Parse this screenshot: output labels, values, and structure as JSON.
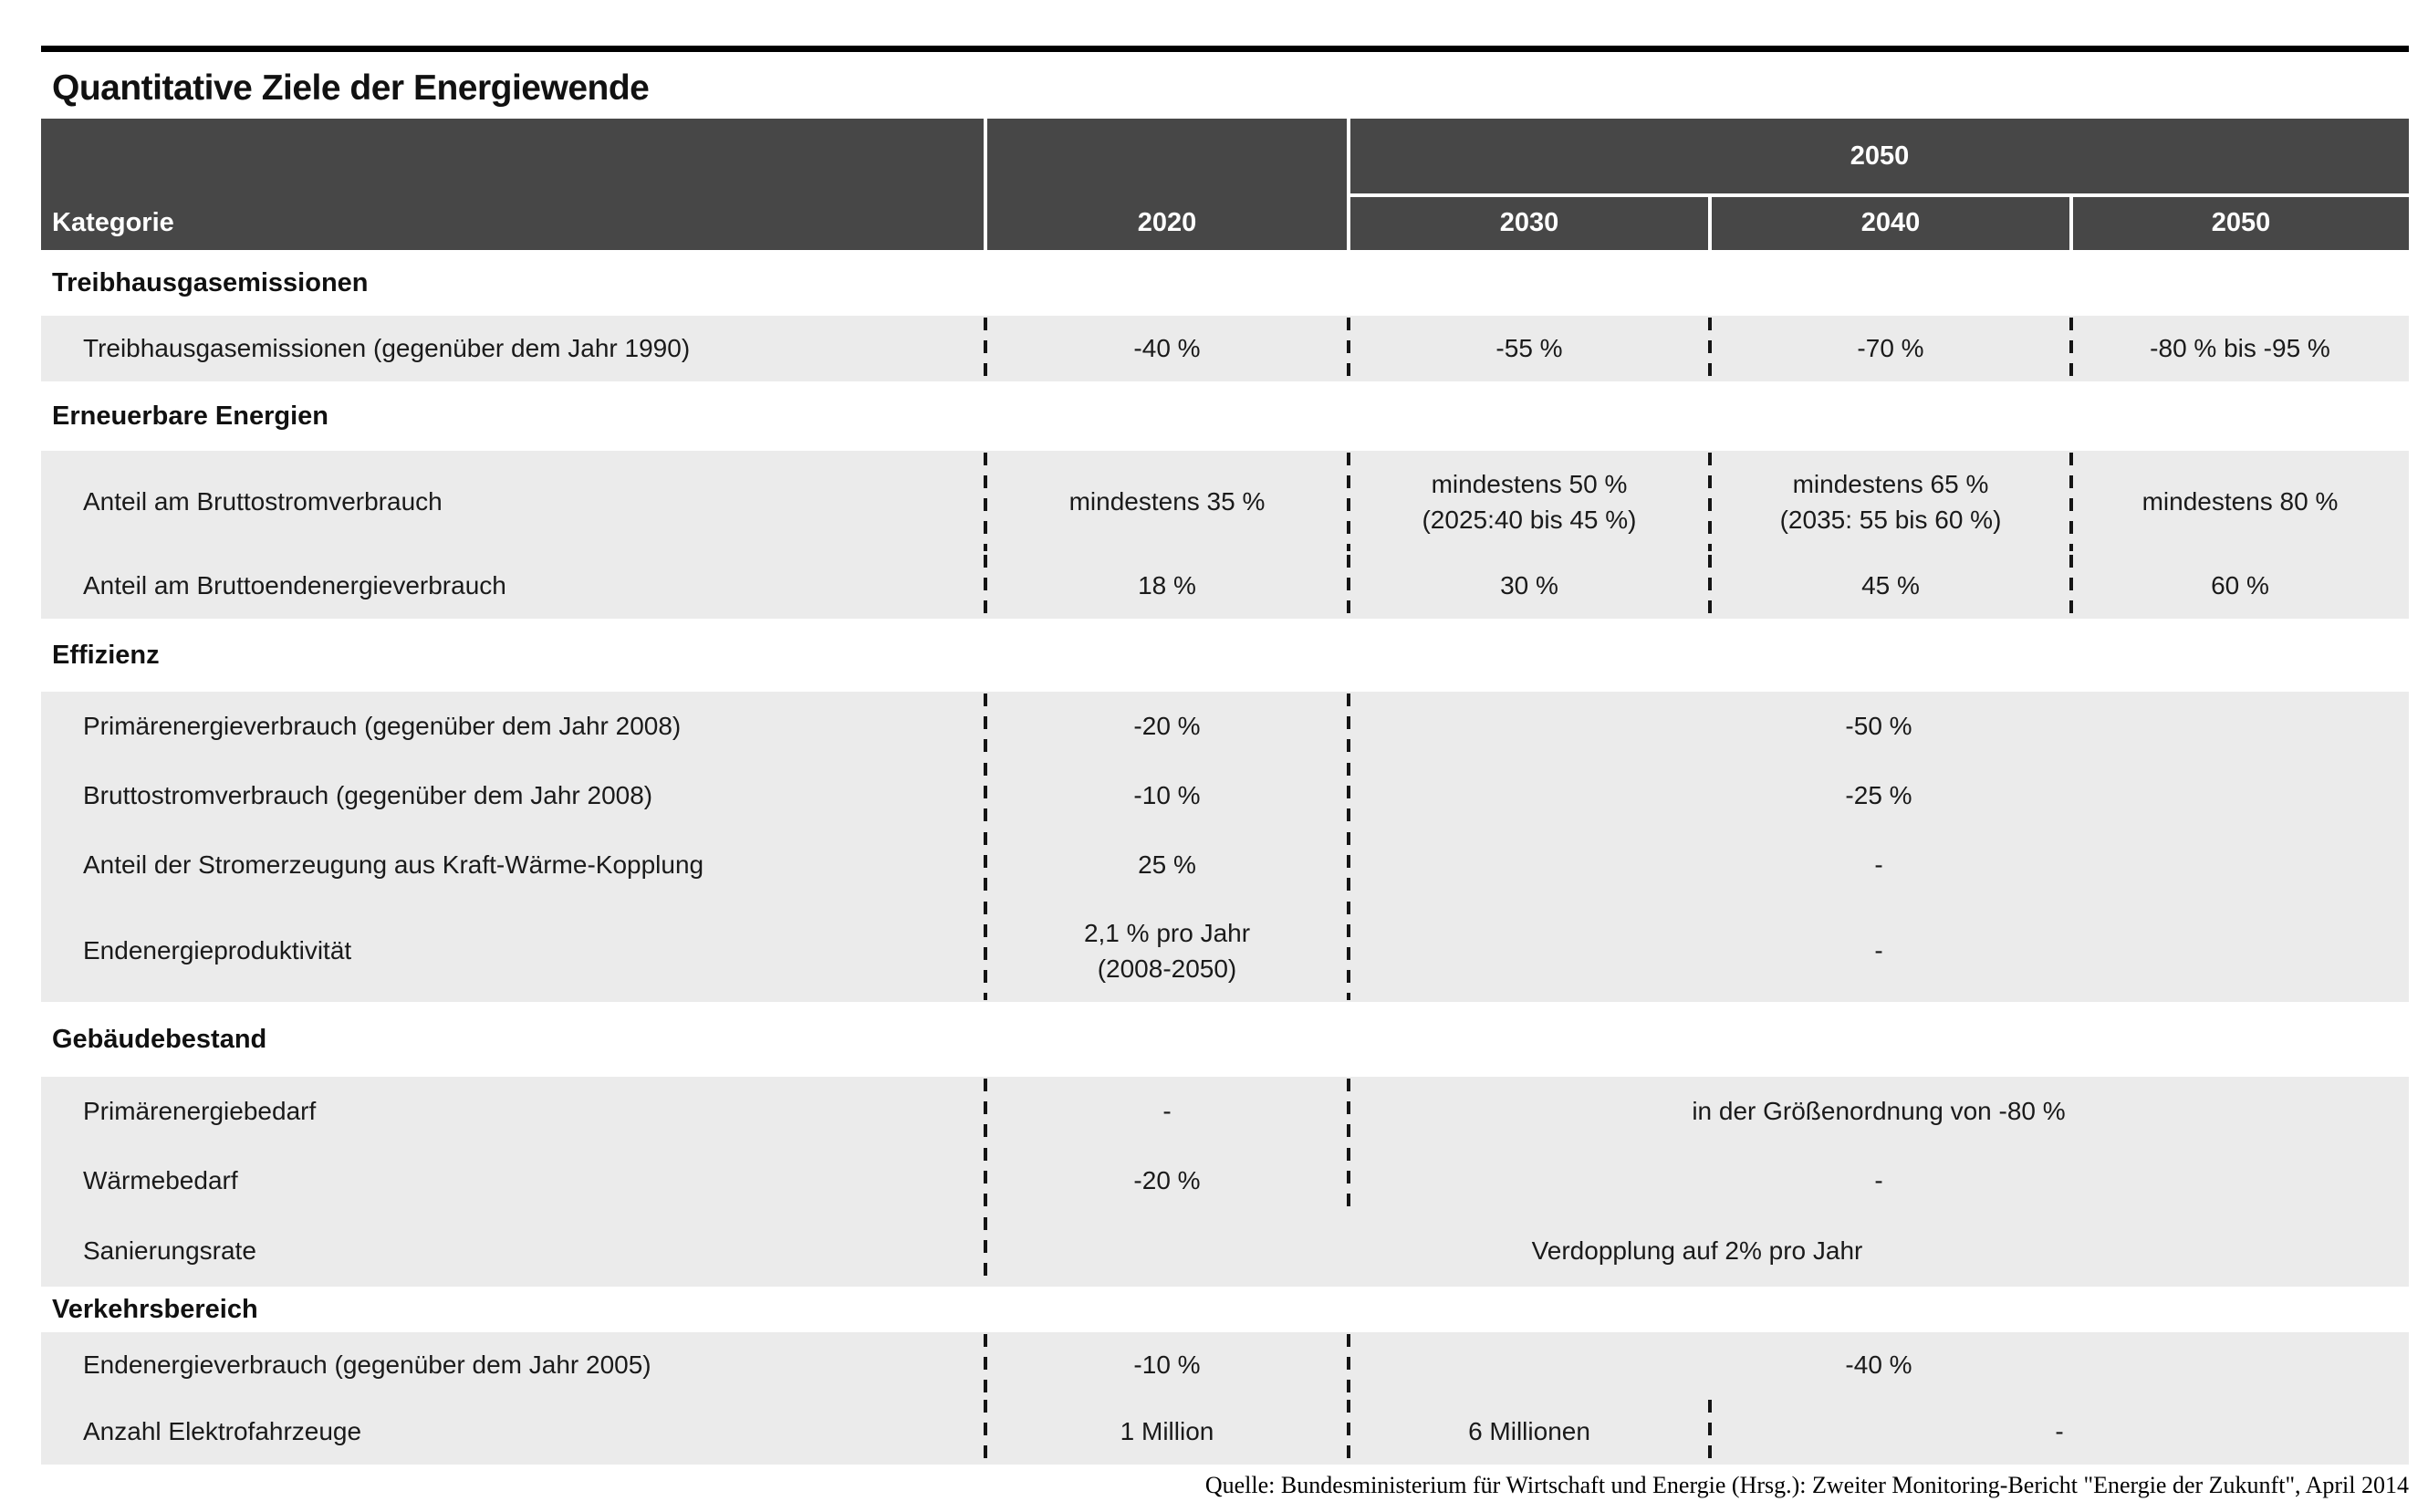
{
  "title": "Quantitative Ziele der Energiewende",
  "header": {
    "kategorie": "Kategorie",
    "col_2020": "2020",
    "group_2050": "2050",
    "sub_2030": "2030",
    "sub_2040": "2040",
    "sub_2050": "2050"
  },
  "sections": [
    {
      "label": "Treibhausgasemissionen",
      "rows": [
        {
          "label": "Treibhausgasemissionen (gegenüber dem Jahr 1990)",
          "values": [
            {
              "text": "-40 %",
              "span": 1
            },
            {
              "text": "-55 %",
              "span": 1
            },
            {
              "text": "-70 %",
              "span": 1
            },
            {
              "text": "-80 % bis -95 %",
              "span": 1
            }
          ]
        }
      ]
    },
    {
      "label": "Erneuerbare Energien",
      "rows": [
        {
          "label": "Anteil am Bruttostromverbrauch",
          "values": [
            {
              "text": "mindestens 35 %",
              "span": 1
            },
            {
              "text": "mindestens 50 %\n(2025:40 bis 45 %)",
              "span": 1
            },
            {
              "text": "mindestens 65 %\n(2035: 55 bis 60 %)",
              "span": 1
            },
            {
              "text": "mindestens 80 %",
              "span": 1
            }
          ]
        },
        {
          "label": "Anteil am Bruttoendenergieverbrauch",
          "values": [
            {
              "text": "18 %",
              "span": 1
            },
            {
              "text": "30 %",
              "span": 1
            },
            {
              "text": "45 %",
              "span": 1
            },
            {
              "text": "60 %",
              "span": 1
            }
          ]
        }
      ]
    },
    {
      "label": "Effizienz",
      "rows": [
        {
          "label": "Primärenergieverbrauch (gegenüber dem Jahr 2008)",
          "values": [
            {
              "text": "-20 %",
              "span": 1
            },
            {
              "text": "-50 %",
              "span": 3
            }
          ]
        },
        {
          "label": "Bruttostromverbrauch (gegenüber dem Jahr 2008)",
          "values": [
            {
              "text": "-10 %",
              "span": 1
            },
            {
              "text": "-25 %",
              "span": 3
            }
          ]
        },
        {
          "label": "Anteil der Stromerzeugung aus Kraft-Wärme-Kopplung",
          "values": [
            {
              "text": "25 %",
              "span": 1
            },
            {
              "text": "-",
              "span": 3
            }
          ]
        },
        {
          "label": "Endenergieproduktivität",
          "values": [
            {
              "text": "2,1 % pro Jahr\n(2008-2050)",
              "span": 1
            },
            {
              "text": "-",
              "span": 3
            }
          ]
        }
      ]
    },
    {
      "label": "Gebäudebestand",
      "rows": [
        {
          "label": "Primärenergiebedarf",
          "values": [
            {
              "text": "-",
              "span": 1
            },
            {
              "text": "in der Größenordnung von -80 %",
              "span": 3
            }
          ]
        },
        {
          "label": "Wärmebedarf",
          "values": [
            {
              "text": "-20 %",
              "span": 1
            },
            {
              "text": "-",
              "span": 3
            }
          ]
        },
        {
          "label": "Sanierungsrate",
          "values": [
            {
              "text": "Verdopplung auf 2% pro Jahr",
              "span": 4
            }
          ]
        }
      ]
    },
    {
      "label": "Verkehrsbereich",
      "rows": [
        {
          "label": "Endenergieverbrauch (gegenüber dem Jahr 2005)",
          "values": [
            {
              "text": "-10 %",
              "span": 1
            },
            {
              "text": "-40 %",
              "span": 3
            }
          ]
        },
        {
          "label": "Anzahl Elektrofahrzeuge",
          "values": [
            {
              "text": "1 Million",
              "span": 1
            },
            {
              "text": "6 Millionen",
              "span": 1
            },
            {
              "text": "-",
              "span": 2
            }
          ]
        }
      ]
    }
  ],
  "source": "Quelle: Bundesministerium für Wirtschaft und Energie (Hrsg.): Zweiter Monitoring-Bericht \"Energie der Zukunft\", April 2014",
  "colors": {
    "header_bg": "#474747",
    "header_text": "#ffffff",
    "row_bg": "#ebebeb",
    "rule": "#000000",
    "text": "#1a1a1a"
  },
  "chart_data": {
    "type": "table",
    "title": "Quantitative Ziele der Energiewende",
    "columns": [
      "Kategorie",
      "2020",
      "2030",
      "2040",
      "2050"
    ],
    "column_grouping": {
      "group_label": "2050",
      "grouped_columns": [
        "2030",
        "2040",
        "2050"
      ]
    },
    "rows": [
      {
        "section": "Treibhausgasemissionen",
        "kategorie": "Treibhausgasemissionen (gegenüber dem Jahr 1990)",
        "2020": "-40 %",
        "2030": "-55 %",
        "2040": "-70 %",
        "2050": "-80 % bis -95 %"
      },
      {
        "section": "Erneuerbare Energien",
        "kategorie": "Anteil am Bruttostromverbrauch",
        "2020": "mindestens 35 %",
        "2030": "mindestens 50 % (2025:40 bis 45 %)",
        "2040": "mindestens 65 % (2035: 55 bis 60 %)",
        "2050": "mindestens 80 %"
      },
      {
        "section": "Erneuerbare Energien",
        "kategorie": "Anteil am Bruttoendenergieverbrauch",
        "2020": "18 %",
        "2030": "30 %",
        "2040": "45 %",
        "2050": "60 %"
      },
      {
        "section": "Effizienz",
        "kategorie": "Primärenergieverbrauch (gegenüber dem Jahr 2008)",
        "2020": "-20 %",
        "2030_2050": "-50 %"
      },
      {
        "section": "Effizienz",
        "kategorie": "Bruttostromverbrauch (gegenüber dem Jahr 2008)",
        "2020": "-10 %",
        "2030_2050": "-25 %"
      },
      {
        "section": "Effizienz",
        "kategorie": "Anteil der Stromerzeugung aus Kraft-Wärme-Kopplung",
        "2020": "25 %",
        "2030_2050": "-"
      },
      {
        "section": "Effizienz",
        "kategorie": "Endenergieproduktivität",
        "2020": "2,1 % pro Jahr (2008-2050)",
        "2030_2050": "-"
      },
      {
        "section": "Gebäudebestand",
        "kategorie": "Primärenergiebedarf",
        "2020": "-",
        "2030_2050": "in der Größenordnung von -80 %"
      },
      {
        "section": "Gebäudebestand",
        "kategorie": "Wärmebedarf",
        "2020": "-20 %",
        "2030_2050": "-"
      },
      {
        "section": "Gebäudebestand",
        "kategorie": "Sanierungsrate",
        "2020_2050": "Verdopplung auf 2% pro Jahr"
      },
      {
        "section": "Verkehrsbereich",
        "kategorie": "Endenergieverbrauch (gegenüber dem Jahr 2005)",
        "2020": "-10 %",
        "2030_2050": "-40 %"
      },
      {
        "section": "Verkehrsbereich",
        "kategorie": "Anzahl Elektrofahrzeuge",
        "2020": "1 Million",
        "2030": "6 Millionen",
        "2040_2050": "-"
      }
    ],
    "source": "Quelle: Bundesministerium für Wirtschaft und Energie (Hrsg.): Zweiter Monitoring-Bericht \"Energie der Zukunft\", April 2014"
  }
}
